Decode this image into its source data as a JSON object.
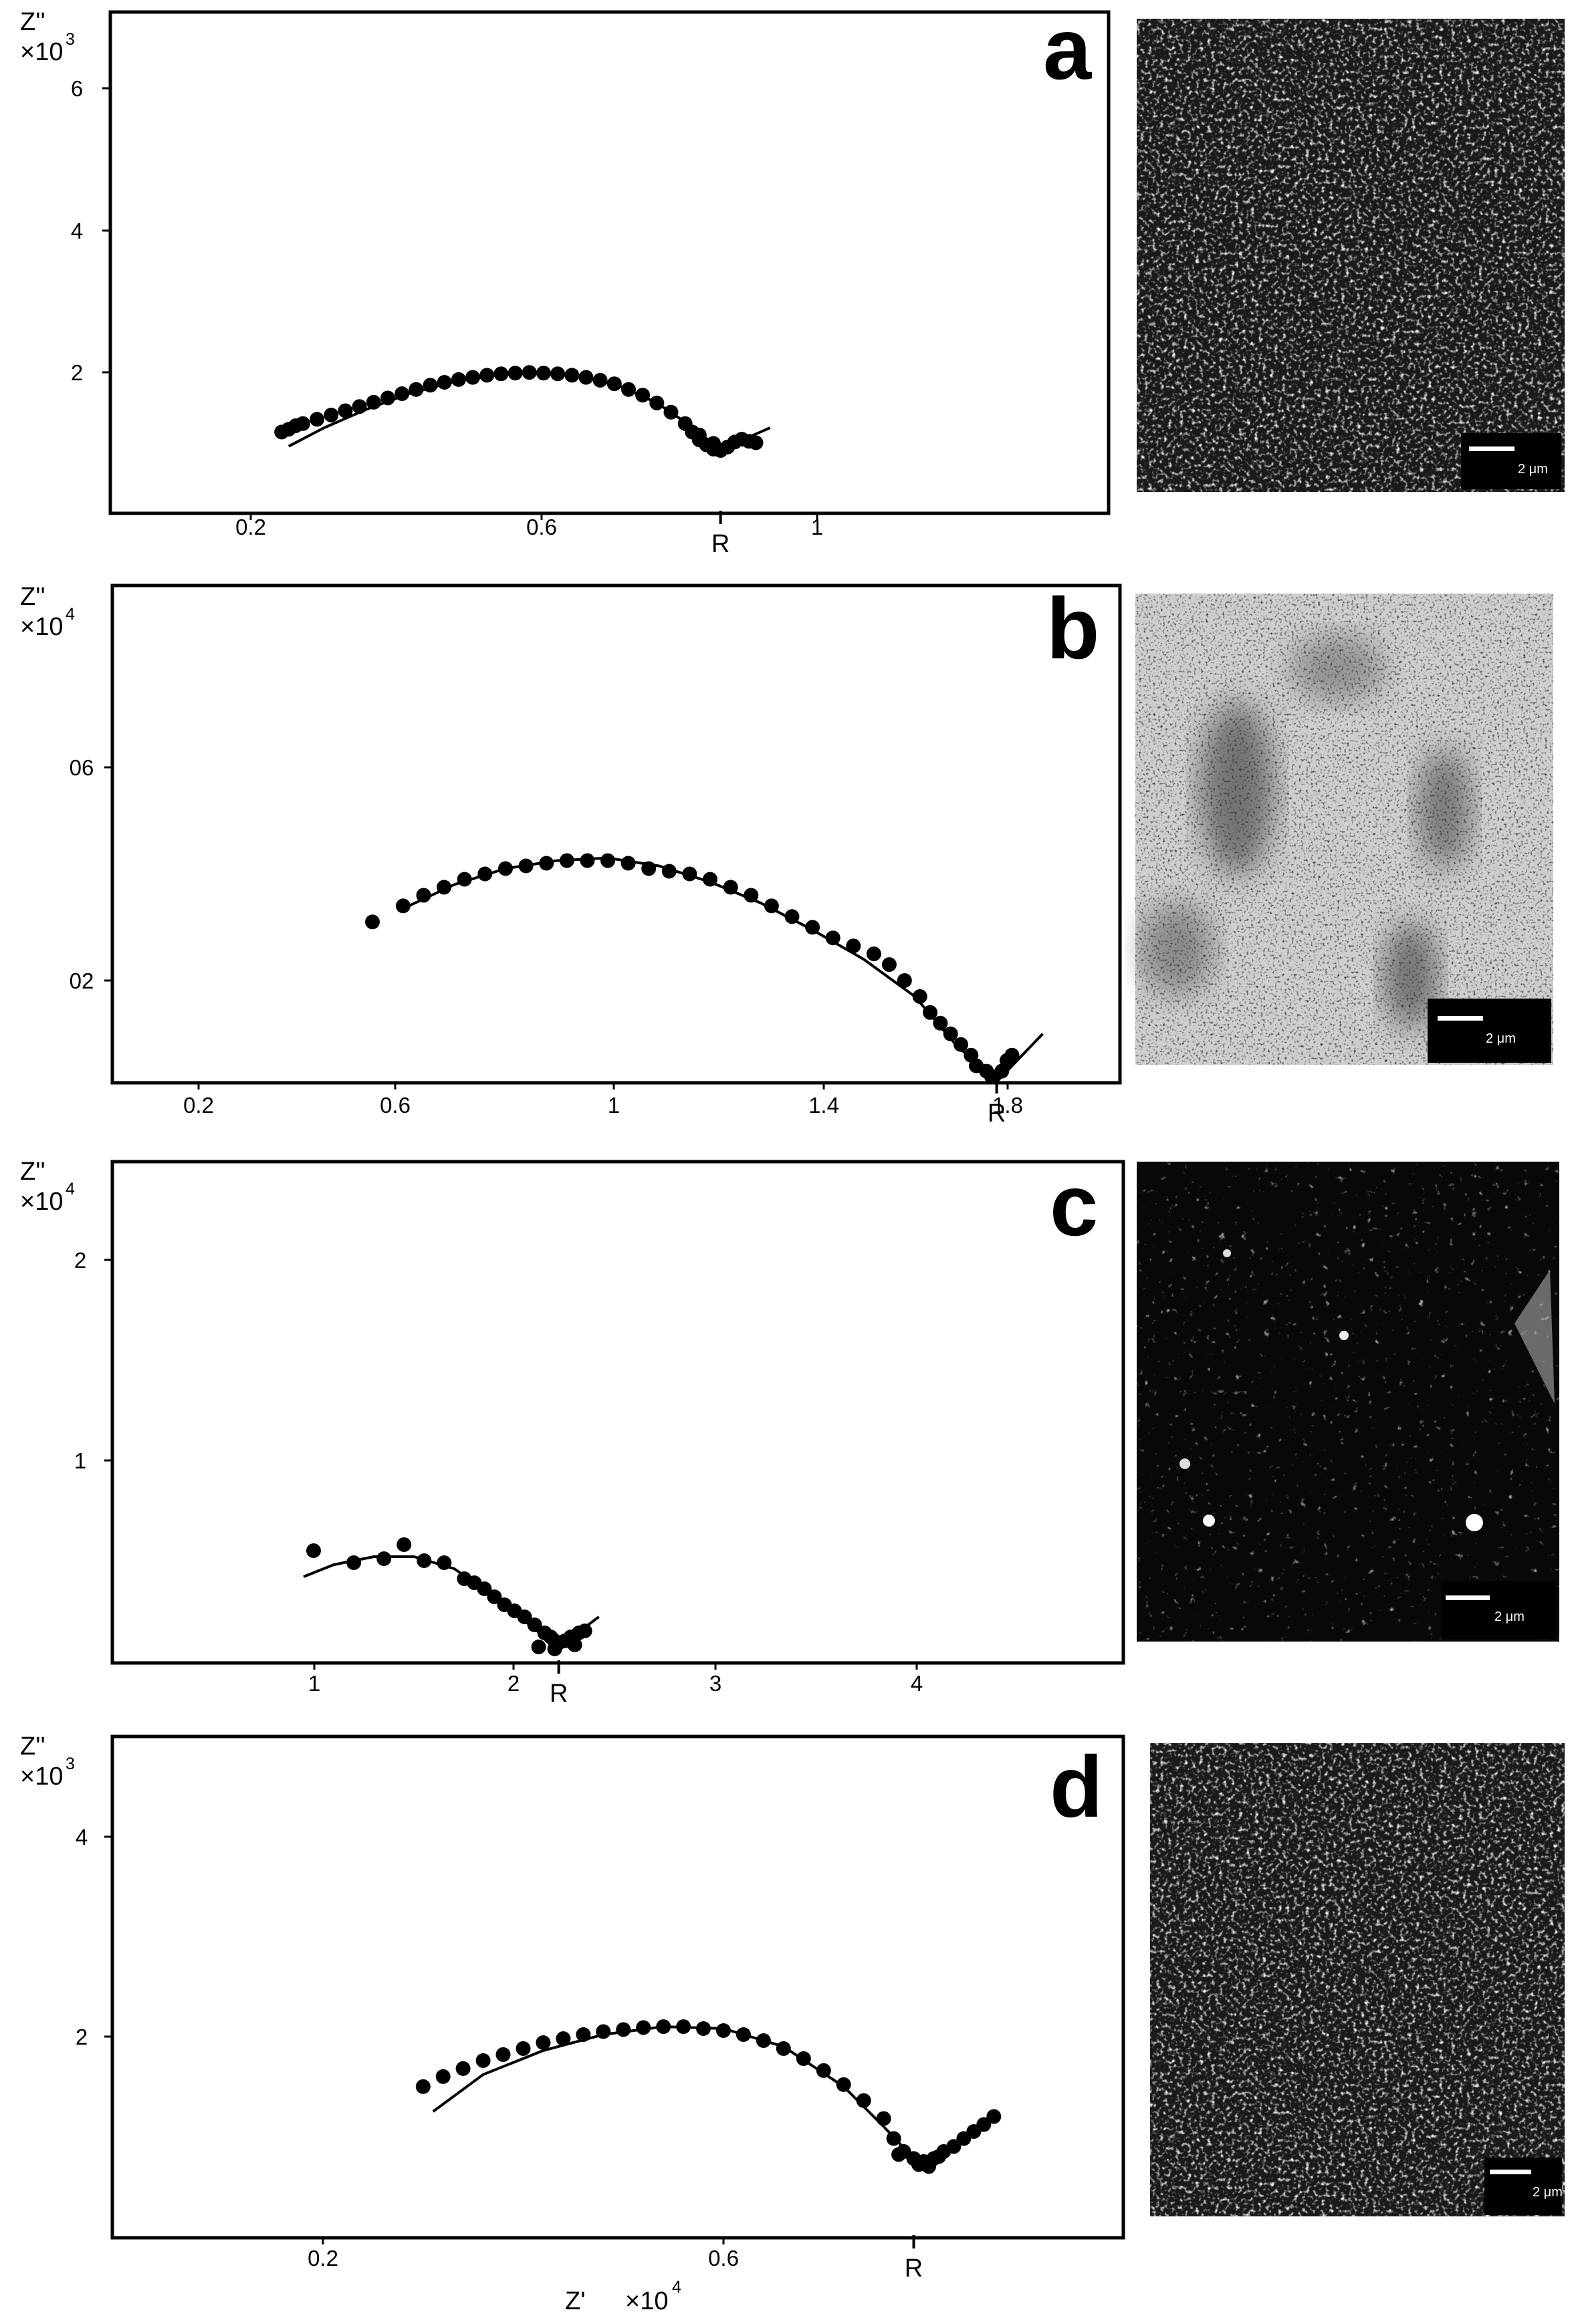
{
  "chart_data": [
    {
      "type": "scatter",
      "panel_label": "a",
      "y_axis_label": "Z''",
      "y_multiplier": "×10",
      "y_exponent": "3",
      "x_ticks": [
        "0.2",
        "0.6",
        "1"
      ],
      "y_ticks": [
        "2",
        "4",
        "6"
      ],
      "xlim": [
        0.0,
        1.4
      ],
      "ylim": [
        0.8,
        7.0
      ],
      "r_marker": {
        "label": "R",
        "x": 0.86
      },
      "points": [
        [
          0.24,
          1.16
        ],
        [
          0.25,
          1.2
        ],
        [
          0.26,
          1.25
        ],
        [
          0.27,
          1.28
        ],
        [
          0.29,
          1.34
        ],
        [
          0.31,
          1.4
        ],
        [
          0.33,
          1.46
        ],
        [
          0.35,
          1.52
        ],
        [
          0.37,
          1.58
        ],
        [
          0.39,
          1.64
        ],
        [
          0.41,
          1.7
        ],
        [
          0.43,
          1.76
        ],
        [
          0.45,
          1.82
        ],
        [
          0.47,
          1.86
        ],
        [
          0.49,
          1.9
        ],
        [
          0.51,
          1.93
        ],
        [
          0.53,
          1.96
        ],
        [
          0.55,
          1.98
        ],
        [
          0.57,
          1.99
        ],
        [
          0.59,
          2.0
        ],
        [
          0.61,
          1.99
        ],
        [
          0.63,
          1.98
        ],
        [
          0.65,
          1.96
        ],
        [
          0.67,
          1.93
        ],
        [
          0.69,
          1.89
        ],
        [
          0.71,
          1.84
        ],
        [
          0.73,
          1.76
        ],
        [
          0.75,
          1.68
        ],
        [
          0.77,
          1.57
        ],
        [
          0.79,
          1.44
        ],
        [
          0.81,
          1.28
        ],
        [
          0.82,
          1.16
        ],
        [
          0.83,
          1.05
        ],
        [
          0.84,
          0.98
        ],
        [
          0.85,
          0.92
        ],
        [
          0.86,
          0.9
        ],
        [
          0.87,
          0.95
        ],
        [
          0.88,
          1.02
        ],
        [
          0.89,
          1.06
        ],
        [
          0.9,
          1.03
        ],
        [
          0.91,
          1.01
        ],
        [
          0.83,
          1.12
        ],
        [
          0.85,
          1.0
        ]
      ],
      "fit_curve": [
        [
          0.25,
          0.96
        ],
        [
          0.3,
          1.22
        ],
        [
          0.36,
          1.48
        ],
        [
          0.42,
          1.7
        ],
        [
          0.48,
          1.86
        ],
        [
          0.54,
          1.96
        ],
        [
          0.6,
          2.0
        ],
        [
          0.66,
          1.95
        ],
        [
          0.72,
          1.8
        ],
        [
          0.77,
          1.57
        ],
        [
          0.81,
          1.3
        ],
        [
          0.84,
          1.07
        ],
        [
          0.86,
          0.9
        ],
        [
          0.88,
          0.98
        ],
        [
          0.9,
          1.09
        ],
        [
          0.93,
          1.22
        ]
      ]
    },
    {
      "type": "scatter",
      "panel_label": "b",
      "y_axis_label": "Z''",
      "y_multiplier": "×10",
      "y_exponent": "4",
      "x_ticks": [
        "0.2",
        "0.6",
        "1",
        "1.4",
        "1.8"
      ],
      "y_ticks": [
        "02",
        "06"
      ],
      "xlim": [
        0.0,
        2.0
      ],
      "ylim": [
        0.0,
        0.8
      ],
      "r_marker": {
        "label": "R",
        "x": 1.76
      },
      "points": [
        [
          0.54,
          0.31
        ],
        [
          0.6,
          0.34
        ],
        [
          0.64,
          0.36
        ],
        [
          0.68,
          0.375
        ],
        [
          0.72,
          0.39
        ],
        [
          0.76,
          0.4
        ],
        [
          0.8,
          0.41
        ],
        [
          0.84,
          0.415
        ],
        [
          0.88,
          0.42
        ],
        [
          0.92,
          0.425
        ],
        [
          0.96,
          0.425
        ],
        [
          1.0,
          0.425
        ],
        [
          1.04,
          0.42
        ],
        [
          1.08,
          0.41
        ],
        [
          1.12,
          0.405
        ],
        [
          1.16,
          0.4
        ],
        [
          1.2,
          0.39
        ],
        [
          1.24,
          0.375
        ],
        [
          1.28,
          0.36
        ],
        [
          1.32,
          0.34
        ],
        [
          1.36,
          0.32
        ],
        [
          1.4,
          0.3
        ],
        [
          1.44,
          0.28
        ],
        [
          1.48,
          0.265
        ],
        [
          1.52,
          0.25
        ],
        [
          1.55,
          0.23
        ],
        [
          1.58,
          0.2
        ],
        [
          1.61,
          0.17
        ],
        [
          1.63,
          0.14
        ],
        [
          1.65,
          0.12
        ],
        [
          1.67,
          0.1
        ],
        [
          1.69,
          0.08
        ],
        [
          1.71,
          0.06
        ],
        [
          1.72,
          0.04
        ],
        [
          1.74,
          0.03
        ],
        [
          1.75,
          0.02
        ],
        [
          1.77,
          0.03
        ],
        [
          1.78,
          0.05
        ],
        [
          1.79,
          0.06
        ]
      ],
      "fit_curve": [
        [
          0.6,
          0.335
        ],
        [
          0.7,
          0.38
        ],
        [
          0.8,
          0.41
        ],
        [
          0.9,
          0.425
        ],
        [
          1.0,
          0.43
        ],
        [
          1.1,
          0.415
        ],
        [
          1.2,
          0.385
        ],
        [
          1.3,
          0.345
        ],
        [
          1.4,
          0.295
        ],
        [
          1.5,
          0.24
        ],
        [
          1.6,
          0.17
        ],
        [
          1.68,
          0.08
        ],
        [
          1.76,
          0.01
        ],
        [
          1.8,
          0.05
        ],
        [
          1.85,
          0.1
        ]
      ]
    },
    {
      "type": "scatter",
      "panel_label": "c",
      "y_axis_label": "Z''",
      "y_multiplier": "×10",
      "y_exponent": "4",
      "x_ticks": [
        "1",
        "2",
        "3",
        "4"
      ],
      "y_ticks": [
        "1",
        "2"
      ],
      "xlim": [
        0.0,
        5.0
      ],
      "ylim": [
        0.0,
        2.5
      ],
      "r_marker": {
        "label": "R",
        "x": 2.22
      },
      "points": [
        [
          1.0,
          0.55
        ],
        [
          1.2,
          0.49
        ],
        [
          1.35,
          0.51
        ],
        [
          1.45,
          0.58
        ],
        [
          1.55,
          0.5
        ],
        [
          1.65,
          0.49
        ],
        [
          1.75,
          0.41
        ],
        [
          1.8,
          0.39
        ],
        [
          1.85,
          0.36
        ],
        [
          1.9,
          0.32
        ],
        [
          1.95,
          0.28
        ],
        [
          2.0,
          0.25
        ],
        [
          2.05,
          0.22
        ],
        [
          2.1,
          0.18
        ],
        [
          2.15,
          0.14
        ],
        [
          2.18,
          0.12
        ],
        [
          2.2,
          0.1
        ],
        [
          2.22,
          0.09
        ],
        [
          2.25,
          0.1
        ],
        [
          2.28,
          0.12
        ],
        [
          2.32,
          0.14
        ],
        [
          2.35,
          0.15
        ],
        [
          2.12,
          0.07
        ],
        [
          2.2,
          0.06
        ],
        [
          2.3,
          0.08
        ]
      ],
      "fit_curve": [
        [
          0.95,
          0.42
        ],
        [
          1.1,
          0.48
        ],
        [
          1.3,
          0.52
        ],
        [
          1.5,
          0.52
        ],
        [
          1.7,
          0.46
        ],
        [
          1.9,
          0.32
        ],
        [
          2.05,
          0.2
        ],
        [
          2.15,
          0.12
        ],
        [
          2.22,
          0.06
        ],
        [
          2.3,
          0.13
        ],
        [
          2.42,
          0.22
        ]
      ]
    },
    {
      "type": "scatter",
      "panel_label": "d",
      "y_axis_label": "Z''",
      "y_multiplier": "×10",
      "y_exponent": "3",
      "x_axis_label": "Z'",
      "x_multiplier": "×10",
      "x_exponent": "4",
      "x_ticks": [
        "0.2",
        "0.6"
      ],
      "y_ticks": [
        "2",
        "4"
      ],
      "xlim": [
        0.0,
        1.0
      ],
      "ylim": [
        0.3,
        5.5
      ],
      "r_marker": {
        "label": "R",
        "x": 0.79
      },
      "points": [
        [
          0.3,
          1.5
        ],
        [
          0.32,
          1.6
        ],
        [
          0.34,
          1.68
        ],
        [
          0.36,
          1.76
        ],
        [
          0.38,
          1.82
        ],
        [
          0.4,
          1.88
        ],
        [
          0.42,
          1.94
        ],
        [
          0.44,
          1.98
        ],
        [
          0.46,
          2.02
        ],
        [
          0.48,
          2.05
        ],
        [
          0.5,
          2.07
        ],
        [
          0.52,
          2.09
        ],
        [
          0.54,
          2.1
        ],
        [
          0.56,
          2.1
        ],
        [
          0.58,
          2.08
        ],
        [
          0.6,
          2.06
        ],
        [
          0.62,
          2.02
        ],
        [
          0.64,
          1.96
        ],
        [
          0.66,
          1.88
        ],
        [
          0.68,
          1.78
        ],
        [
          0.7,
          1.66
        ],
        [
          0.72,
          1.52
        ],
        [
          0.74,
          1.36
        ],
        [
          0.76,
          1.18
        ],
        [
          0.77,
          0.98
        ],
        [
          0.78,
          0.85
        ],
        [
          0.79,
          0.78
        ],
        [
          0.8,
          0.75
        ],
        [
          0.81,
          0.78
        ],
        [
          0.82,
          0.85
        ],
        [
          0.83,
          0.9
        ],
        [
          0.84,
          0.98
        ],
        [
          0.85,
          1.05
        ],
        [
          0.86,
          1.12
        ],
        [
          0.87,
          1.2
        ],
        [
          0.775,
          0.82
        ],
        [
          0.795,
          0.72
        ],
        [
          0.805,
          0.7
        ],
        [
          0.815,
          0.8
        ]
      ],
      "fit_curve": [
        [
          0.31,
          1.25
        ],
        [
          0.36,
          1.62
        ],
        [
          0.42,
          1.86
        ],
        [
          0.48,
          2.02
        ],
        [
          0.54,
          2.1
        ],
        [
          0.6,
          2.08
        ],
        [
          0.66,
          1.9
        ],
        [
          0.72,
          1.5
        ],
        [
          0.76,
          1.1
        ],
        [
          0.79,
          0.78
        ],
        [
          0.81,
          0.74
        ],
        [
          0.84,
          0.95
        ],
        [
          0.87,
          1.18
        ]
      ]
    }
  ],
  "micrographs": [
    {
      "scale_bar_label": "2 μm"
    },
    {
      "scale_bar_label": "2 μm"
    },
    {
      "scale_bar_label": "2 μm"
    },
    {
      "scale_bar_label": "2 μm"
    }
  ]
}
